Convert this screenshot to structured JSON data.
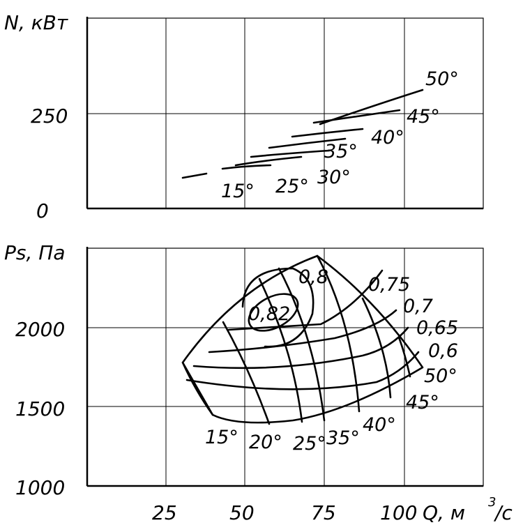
{
  "chart_data": [
    {
      "type": "line",
      "ylabel": "N, кВт",
      "xlim": [
        0,
        125
      ],
      "ylim": [
        0,
        400
      ],
      "x_ticks": [
        25,
        50,
        75,
        100
      ],
      "y_tick_labels": [
        "250",
        "0"
      ],
      "grid": true,
      "series": [
        {
          "name": "15°",
          "x": [
            30,
            36
          ],
          "y": [
            85,
            90
          ]
        },
        {
          "name": "15°",
          "x": [
            43,
            58
          ],
          "y": [
            108,
            113
          ]
        },
        {
          "name": "25°",
          "x": [
            47,
            64
          ],
          "y": [
            118,
            131
          ]
        },
        {
          "name": "30°",
          "x": [
            53,
            69
          ],
          "y": [
            138,
            143
          ]
        },
        {
          "name": "35°",
          "x": [
            58,
            73
          ],
          "y": [
            160,
            177
          ]
        },
        {
          "name": "40°",
          "x": [
            65,
            87
          ],
          "y": [
            187,
            211
          ]
        },
        {
          "name": "45°",
          "x": [
            72,
            99
          ],
          "y": [
            224,
            262
          ]
        },
        {
          "name": "50°",
          "x": [
            71,
            106
          ],
          "y": [
            223,
            310
          ]
        }
      ],
      "annotations": [
        "50°",
        "45°",
        "40°",
        "35°",
        "30°",
        "25°",
        "15°"
      ]
    },
    {
      "type": "line",
      "ylabel": "Ps, Па",
      "xlabel": "Q, м³/с",
      "xlim": [
        0,
        125
      ],
      "ylim": [
        1000,
        2600
      ],
      "x_ticks": [
        25,
        50,
        75,
        100
      ],
      "x_tick_labels": [
        "25",
        "50",
        "75",
        "100"
      ],
      "y_tick_labels": [
        "2000",
        "1500",
        "1000"
      ],
      "grid": true,
      "blade_angle_lines": [
        {
          "name": "15°",
          "x": [
            30,
            43
          ],
          "y": [
            1750,
            1450
          ]
        },
        {
          "name": "20°",
          "x": [
            43,
            58
          ],
          "y": [
            2050,
            1400
          ]
        },
        {
          "name": "25°",
          "x": [
            55,
            68
          ],
          "y": [
            2290,
            1420
          ]
        },
        {
          "name": "35°",
          "x": [
            61,
            76
          ],
          "y": [
            2380,
            1430
          ]
        },
        {
          "name": "40°",
          "x": [
            68,
            87
          ],
          "y": [
            2460,
            1480
          ]
        },
        {
          "name": "45°",
          "x": [
            79,
            97
          ],
          "y": [
            2260,
            1550
          ]
        },
        {
          "name": "50°",
          "x": [
            92,
            105
          ],
          "y": [
            1950,
            1680
          ]
        }
      ],
      "efficiency_contours": [
        "0,82",
        "0,8",
        "0,75",
        "0,7",
        "0,65",
        "0,6"
      ],
      "annotations": [
        "0,8",
        "0,82",
        "0,75",
        "0,7",
        "0,65",
        "0,6",
        "50°",
        "45°",
        "40°",
        "35°",
        "25°",
        "20°",
        "15°"
      ]
    }
  ],
  "labels": {
    "top_ylabel": "N, кВт",
    "top_y_250": "250",
    "top_y_0": "0",
    "bottom_ylabel": "Ps, Па",
    "bottom_y_2000": "2000",
    "bottom_y_1500": "1500",
    "bottom_y_1000": "1000",
    "x_25": "25",
    "x_50": "50",
    "x_75": "75",
    "x_100": "100",
    "xlabel": "Q, м",
    "xlabel_exp": "3",
    "xlabel_tail": "/с"
  },
  "top_annotations": {
    "a50": "50°",
    "a45": "45°",
    "a40": "40°",
    "a35": "35°",
    "a30": "30°",
    "a25": "25°",
    "a15": "15°"
  },
  "bottom_annotations": {
    "e08": "0,8",
    "e082": "0,82",
    "e075": "0,75",
    "e07": "0,7",
    "e065": "0,65",
    "e06": "0,6",
    "a50": "50°",
    "a45": "45°",
    "a40": "40°",
    "a35": "35°",
    "a25": "25°",
    "a20": "20°",
    "a15": "15°"
  }
}
